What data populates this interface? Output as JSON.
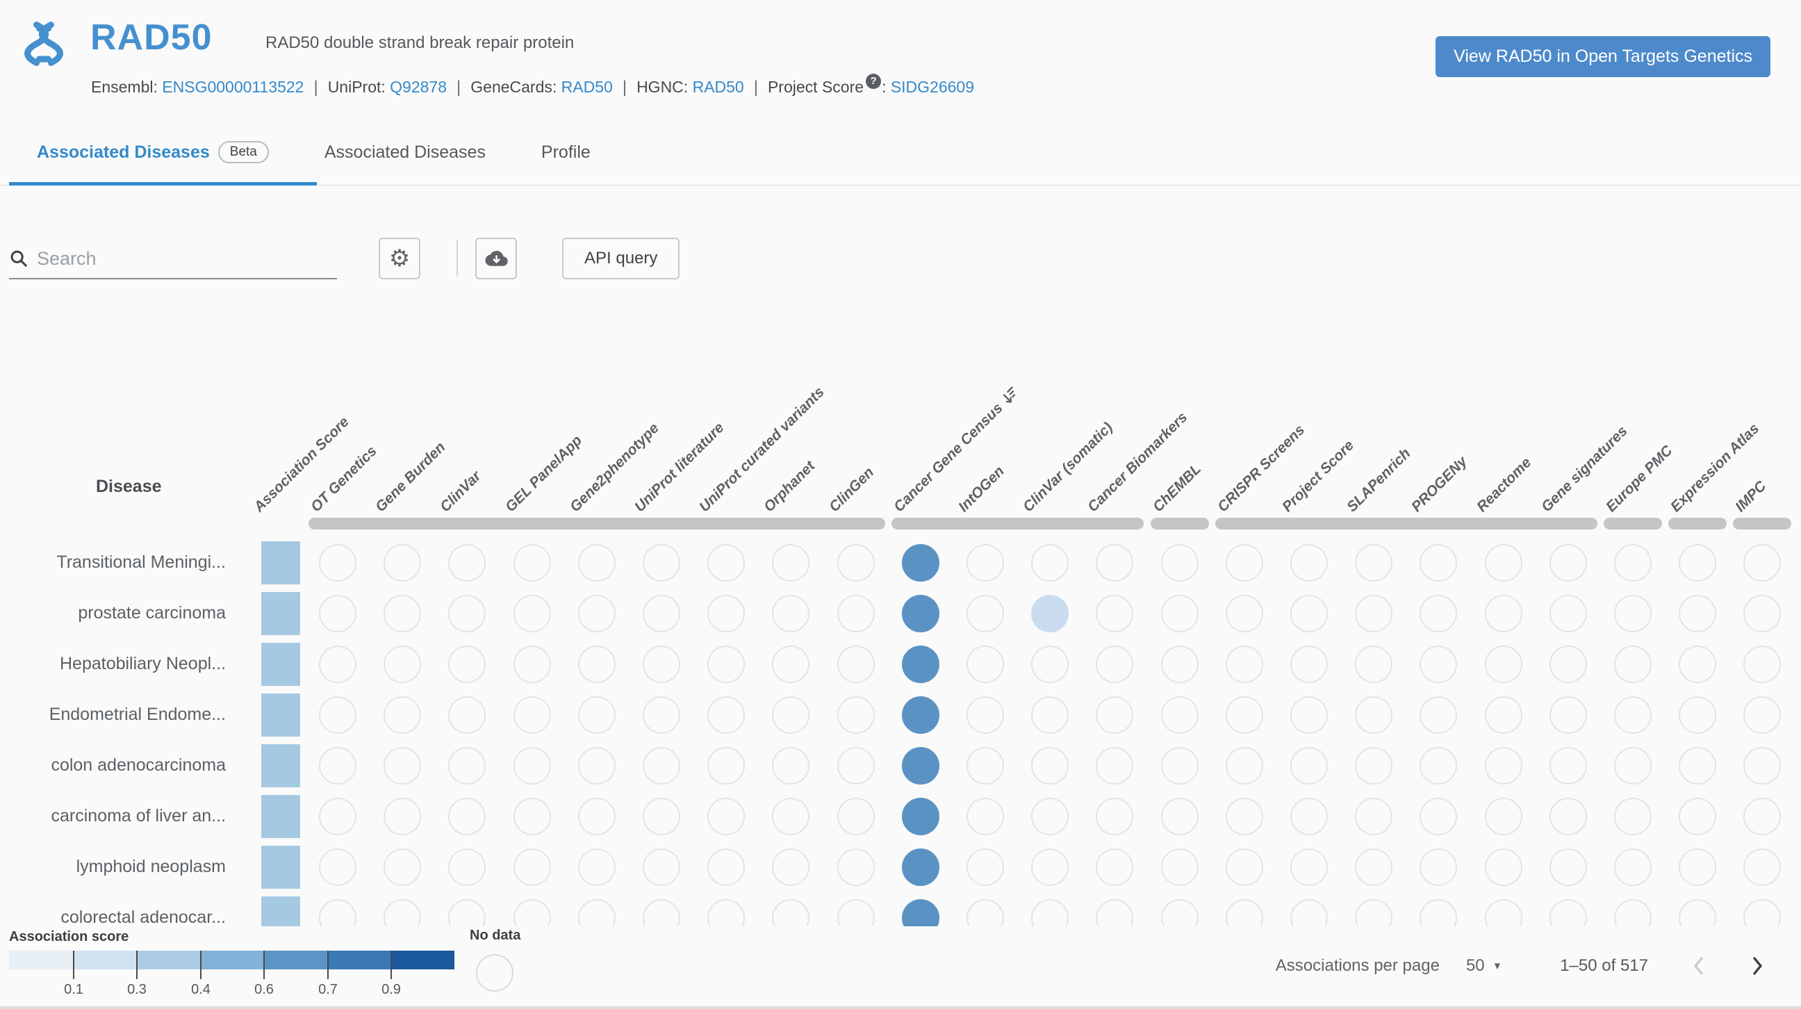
{
  "header": {
    "symbol": "RAD50",
    "description": "RAD50 double strand break repair protein",
    "xrefs": [
      {
        "label": "Ensembl",
        "value": "ENSG00000113522"
      },
      {
        "label": "UniProt",
        "value": "Q92878"
      },
      {
        "label": "GeneCards",
        "value": "RAD50"
      },
      {
        "label": "HGNC",
        "value": "RAD50"
      },
      {
        "label": "Project Score",
        "value": "SIDG26609",
        "help_badge": "?"
      }
    ],
    "cta_button": "View RAD50 in Open Targets Genetics"
  },
  "tabs": [
    {
      "label": "Associated Diseases",
      "badge": "Beta",
      "active": true
    },
    {
      "label": "Associated Diseases",
      "active": false
    },
    {
      "label": "Profile",
      "active": false
    }
  ],
  "toolbar": {
    "search_placeholder": "Search",
    "api_query_label": "API query",
    "icons": [
      "gear-icon",
      "cloud-download-icon"
    ]
  },
  "chart_data": {
    "type": "heatmap",
    "row_axis_label": "Disease",
    "sorted_column": "Cancer Gene Census",
    "columns": [
      {
        "label": "Association Score",
        "kind": "score"
      },
      {
        "label": "OT Genetics"
      },
      {
        "label": "Gene Burden"
      },
      {
        "label": "ClinVar"
      },
      {
        "label": "GEL PanelApp"
      },
      {
        "label": "Gene2phenotype"
      },
      {
        "label": "UniProt literature"
      },
      {
        "label": "UniProt curated variants"
      },
      {
        "label": "Orphanet"
      },
      {
        "label": "ClinGen"
      },
      {
        "label": "Cancer Gene Census",
        "sorted": true
      },
      {
        "label": "IntOGen"
      },
      {
        "label": "ClinVar (somatic)"
      },
      {
        "label": "Cancer Biomarkers"
      },
      {
        "label": "ChEMBL"
      },
      {
        "label": "CRISPR Screens"
      },
      {
        "label": "Project Score"
      },
      {
        "label": "SLAPenrich"
      },
      {
        "label": "PROGENy"
      },
      {
        "label": "Reactome"
      },
      {
        "label": "Gene signatures"
      },
      {
        "label": "Europe PMC"
      },
      {
        "label": "Expression Atlas"
      },
      {
        "label": "IMPC"
      }
    ],
    "source_groups": [
      {
        "from": 0,
        "to": 8
      },
      {
        "from": 9,
        "to": 12
      },
      {
        "from": 13,
        "to": 13
      },
      {
        "from": 14,
        "to": 19
      },
      {
        "from": 20,
        "to": 20
      },
      {
        "from": 21,
        "to": 21
      },
      {
        "from": 22,
        "to": 22
      }
    ],
    "rows": [
      {
        "disease": "Transitional Meningi...",
        "score_color": "#a6c9e2",
        "cells": [
          {
            "column": "Cancer Gene Census",
            "color": "#5b92c4"
          }
        ]
      },
      {
        "disease": "prostate carcinoma",
        "score_color": "#a6c9e2",
        "cells": [
          {
            "column": "Cancer Gene Census",
            "color": "#5b92c4"
          },
          {
            "column": "ClinVar (somatic)",
            "color": "#c9dcef"
          }
        ]
      },
      {
        "disease": "Hepatobiliary Neopl...",
        "score_color": "#a6c9e2",
        "cells": [
          {
            "column": "Cancer Gene Census",
            "color": "#5b92c4"
          }
        ]
      },
      {
        "disease": "Endometrial Endome...",
        "score_color": "#a6c9e2",
        "cells": [
          {
            "column": "Cancer Gene Census",
            "color": "#5b92c4"
          }
        ]
      },
      {
        "disease": "colon adenocarcinoma",
        "score_color": "#a6c9e2",
        "cells": [
          {
            "column": "Cancer Gene Census",
            "color": "#5b92c4"
          }
        ]
      },
      {
        "disease": "carcinoma of liver an...",
        "score_color": "#a6c9e2",
        "cells": [
          {
            "column": "Cancer Gene Census",
            "color": "#5b92c4"
          }
        ]
      },
      {
        "disease": "lymphoid neoplasm",
        "score_color": "#a6c9e2",
        "cells": [
          {
            "column": "Cancer Gene Census",
            "color": "#5b92c4"
          }
        ]
      },
      {
        "disease": "colorectal adenocar...",
        "score_color": "#a6c9e2",
        "cells": [
          {
            "column": "Cancer Gene Census",
            "color": "#5b92c4"
          }
        ]
      }
    ],
    "empty_cell_border": "#e4e4e4"
  },
  "legend": {
    "title": "Association score",
    "colors": [
      "#e8eef5",
      "#d3e2f0",
      "#abcbe5",
      "#82b3d8",
      "#5b95c5",
      "#3a79b5",
      "#1c5a9e"
    ],
    "ticks": [
      "0.1",
      "0.3",
      "0.4",
      "0.6",
      "0.7",
      "0.9"
    ],
    "no_data_label": "No data"
  },
  "pagination": {
    "per_page_label": "Associations per page",
    "per_page_value": "50",
    "range": "1–50 of 517"
  },
  "colors": {
    "accent_blue": "#3489ca",
    "title_blue": "#4590cf",
    "button_blue": "#4e8acb",
    "group_bar_gray": "#c5c5c5"
  }
}
